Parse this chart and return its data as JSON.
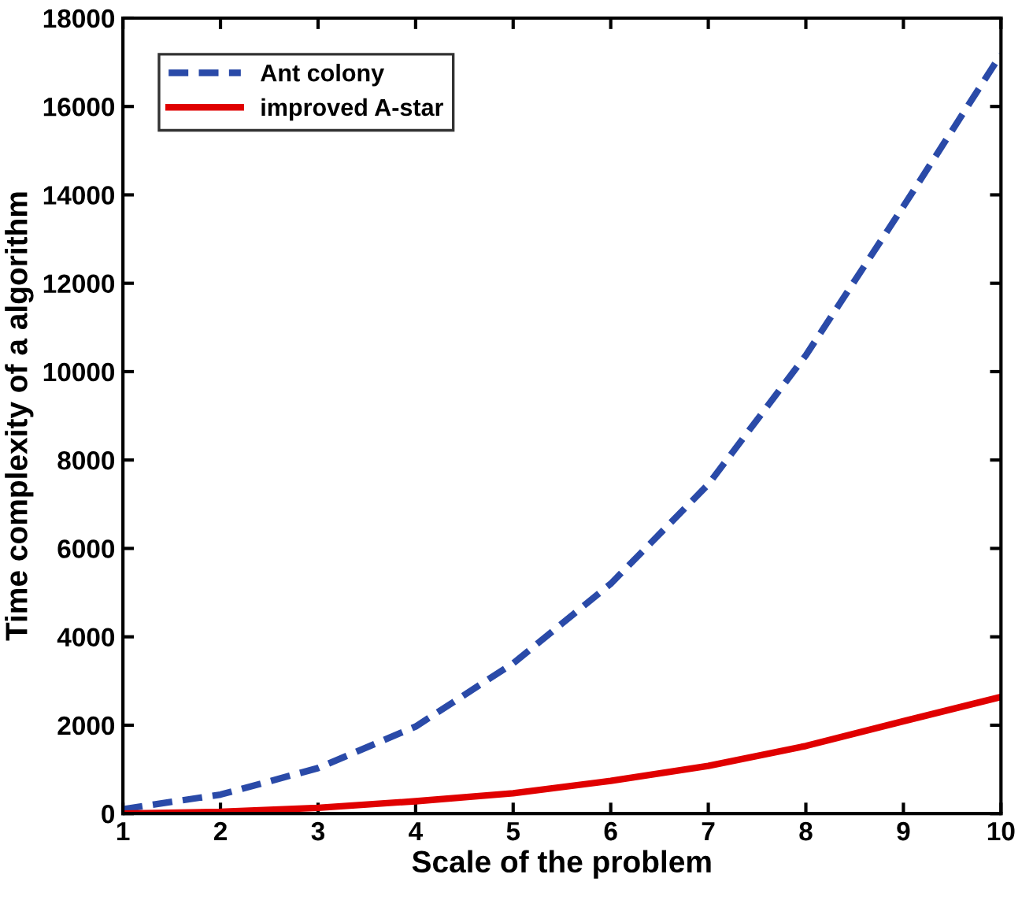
{
  "chart_data": {
    "type": "line",
    "xlabel": "Scale of the problem",
    "ylabel": "Time complexity of a algorithm",
    "x": [
      1,
      2,
      3,
      4,
      5,
      6,
      7,
      8,
      9,
      10
    ],
    "series": [
      {
        "name": "Ant colony",
        "color": "#2a4aa8",
        "line_style": "dashed",
        "values": [
          100,
          430,
          1030,
          1970,
          3400,
          5200,
          7450,
          10370,
          13740,
          17180
        ]
      },
      {
        "name": "improved A-star",
        "color": "#e00000",
        "line_style": "solid",
        "values": [
          0,
          40,
          130,
          280,
          460,
          740,
          1080,
          1530,
          2090,
          2640
        ]
      }
    ],
    "xlim": [
      1,
      10
    ],
    "xticks": [
      1,
      2,
      3,
      4,
      5,
      6,
      7,
      8,
      9,
      10
    ],
    "ylim": [
      0,
      18000
    ],
    "yticks": [
      0,
      2000,
      4000,
      6000,
      8000,
      10000,
      12000,
      14000,
      16000,
      18000
    ],
    "grid": false,
    "legend": "top left"
  }
}
